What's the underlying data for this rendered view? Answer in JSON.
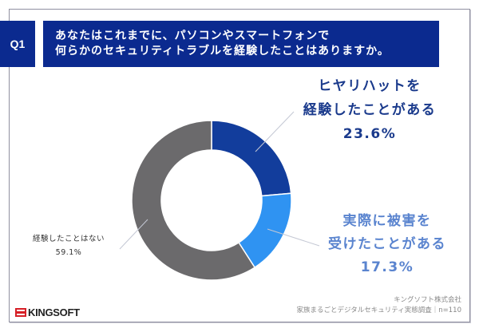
{
  "header": {
    "question_no": "Q1",
    "title_line1": "あなたはこれまでに、パソコンやスマートフォンで",
    "title_line2": "何らかのセキュリティトラブルを経験したことはありますか。"
  },
  "labels": {
    "near_miss": {
      "line1": "ヒヤリハットを",
      "line2": "経験したことがある",
      "value": "23.6%"
    },
    "damaged": {
      "line1": "実際に被害を",
      "line2": "受けたことがある",
      "value": "17.3%"
    },
    "never": {
      "line1": "経験したことはない",
      "value": "59.1%"
    }
  },
  "footer": {
    "logo": "KINGSOFT",
    "source_line1": "キングソフト株式会社",
    "source_line2": "家族まるごとデジタルセキュリティ実態調査｜n=110"
  },
  "colors": {
    "header_bg": "#0b2a8f",
    "near_miss": "#123d9c",
    "damaged": "#2f93f2",
    "never": "#6b6a6c"
  },
  "chart_data": {
    "type": "pie",
    "subtype": "donut",
    "title": "あなたはこれまでに、パソコンやスマートフォンで何らかのセキュリティトラブルを経験したことはありますか。",
    "categories": [
      "ヒヤリハットを経験したことがある",
      "実際に被害を受けたことがある",
      "経験したことはない"
    ],
    "values": [
      23.6,
      17.3,
      59.1
    ],
    "unit": "%",
    "colors": [
      "#123d9c",
      "#2f93f2",
      "#6b6a6c"
    ],
    "start_angle": "12 o'clock, clockwise",
    "sample_size": "n=110"
  }
}
